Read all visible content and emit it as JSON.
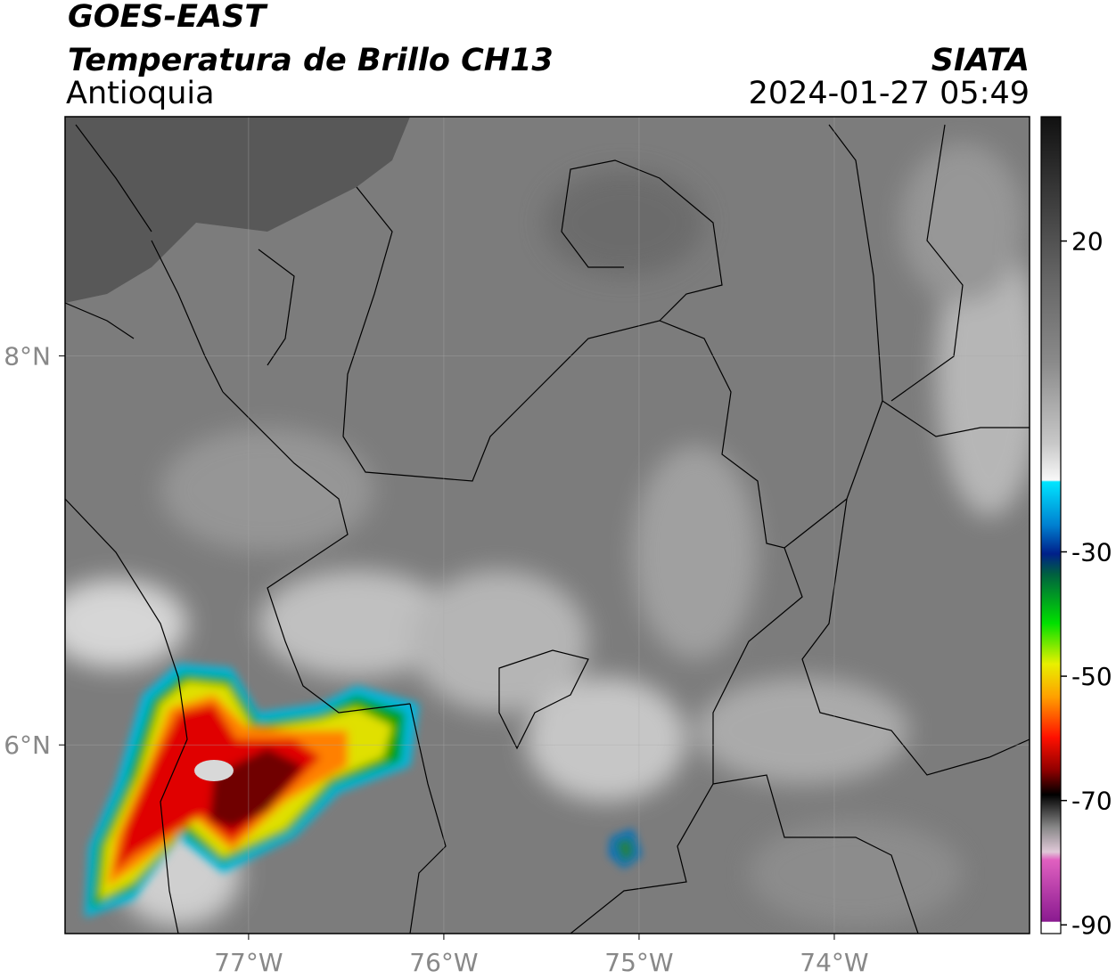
{
  "header": {
    "satellite": "GOES-EAST",
    "product": "Temperatura de Brillo CH13",
    "organization": "SIATA",
    "region": "Antioquia",
    "datetime": "2024-01-27 05:49"
  },
  "map": {
    "xlim": [
      -77.94,
      -73.0
    ],
    "ylim": [
      5.03,
      9.23
    ],
    "xticks": [
      {
        "value": -77,
        "label": "77°W"
      },
      {
        "value": -76,
        "label": "76°W"
      },
      {
        "value": -75,
        "label": "75°W"
      },
      {
        "value": -74,
        "label": "74°W"
      }
    ],
    "yticks": [
      {
        "value": 8,
        "label": "8°N"
      },
      {
        "value": 6,
        "label": "6°N"
      }
    ],
    "grid": true
  },
  "colorbar": {
    "lim": [
      -91.4,
      40
    ],
    "ticks": [
      20,
      -30,
      -50,
      -70,
      -90
    ]
  }
}
